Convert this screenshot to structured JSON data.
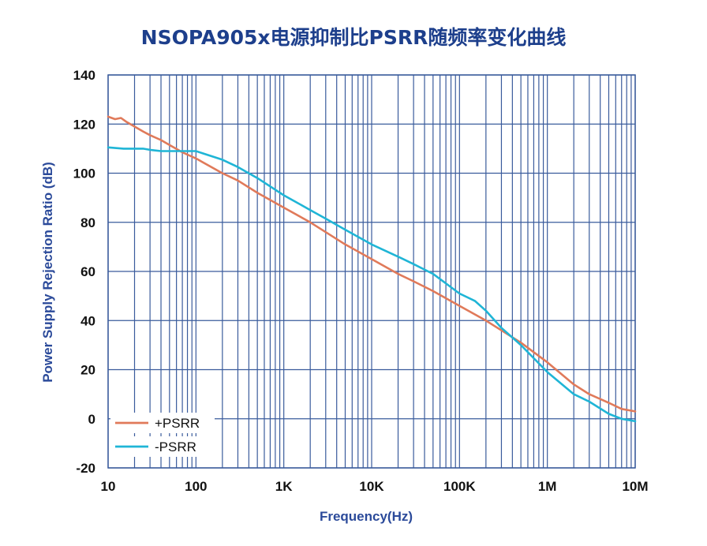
{
  "chart_data": {
    "type": "line",
    "title": "NSOPA905x电源抑制比PSRR随频率变化曲线",
    "xlabel": "Frequency(Hz)",
    "ylabel": "Power Supply Rejection Ratio (dB)",
    "x_scale": "log",
    "xlim": [
      10,
      10000000
    ],
    "ylim": [
      -20,
      140
    ],
    "x_ticks": [
      10,
      100,
      1000,
      10000,
      100000,
      1000000,
      10000000
    ],
    "x_tick_labels": [
      "10",
      "100",
      "1K",
      "10K",
      "100K",
      "1M",
      "10M"
    ],
    "y_ticks": [
      -20,
      0,
      20,
      40,
      60,
      80,
      100,
      120,
      140
    ],
    "y_tick_labels": [
      "-20",
      "0",
      "20",
      "40",
      "60",
      "80",
      "100",
      "120",
      "140"
    ],
    "grid": true,
    "legend_position": "bottom-left",
    "series": [
      {
        "name": "+PSRR",
        "color": "#e07a5a",
        "x": [
          10,
          12,
          14,
          16,
          20,
          25,
          30,
          40,
          50,
          70,
          100,
          200,
          300,
          500,
          1000,
          2000,
          3000,
          5000,
          10000,
          20000,
          30000,
          50000,
          100000,
          200000,
          300000,
          500000,
          1000000,
          2000000,
          3000000,
          5000000,
          7000000,
          10000000
        ],
        "values": [
          123,
          122,
          122.5,
          121,
          119,
          117,
          115.5,
          113.5,
          111.5,
          108.5,
          106,
          100,
          97,
          92,
          86,
          80,
          76,
          71,
          65,
          59,
          56,
          52,
          46,
          40,
          36,
          31,
          23,
          14,
          10,
          6.5,
          4,
          3
        ]
      },
      {
        "name": "-PSRR",
        "color": "#1fb5d6",
        "x": [
          10,
          15,
          20,
          25,
          30,
          40,
          50,
          70,
          100,
          200,
          300,
          500,
          1000,
          2000,
          3000,
          5000,
          10000,
          20000,
          30000,
          50000,
          100000,
          150000,
          200000,
          300000,
          500000,
          1000000,
          2000000,
          3000000,
          5000000,
          7000000,
          10000000
        ],
        "values": [
          110.5,
          110,
          110,
          110,
          109.5,
          109,
          109,
          109,
          109,
          105.5,
          102.5,
          98,
          91,
          85,
          81.5,
          77,
          71,
          66,
          63,
          59,
          51,
          48,
          44,
          37,
          30,
          19,
          10,
          7,
          2,
          0,
          -1
        ]
      }
    ]
  }
}
